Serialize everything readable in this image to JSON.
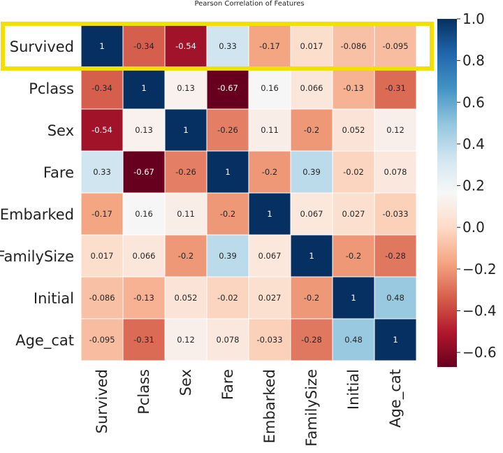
{
  "chart_data": {
    "type": "heatmap",
    "title": "Pearson Correlation of Features",
    "rows": [
      "Survived",
      "Pclass",
      "Sex",
      "Fare",
      "Embarked",
      "FamilySize",
      "Initial",
      "Age_cat"
    ],
    "columns": [
      "Survived",
      "Pclass",
      "Sex",
      "Fare",
      "Embarked",
      "FamilySize",
      "Initial",
      "Age_cat"
    ],
    "values": [
      [
        1,
        -0.34,
        -0.54,
        0.33,
        -0.17,
        0.017,
        -0.086,
        -0.095
      ],
      [
        -0.34,
        1,
        0.13,
        -0.67,
        0.16,
        0.066,
        -0.13,
        -0.31
      ],
      [
        -0.54,
        0.13,
        1,
        -0.26,
        0.11,
        -0.2,
        0.052,
        0.12
      ],
      [
        0.33,
        -0.67,
        -0.26,
        1,
        -0.2,
        0.39,
        -0.02,
        0.078
      ],
      [
        -0.17,
        0.16,
        0.11,
        -0.2,
        1,
        0.067,
        0.027,
        -0.033
      ],
      [
        0.017,
        0.066,
        -0.2,
        0.39,
        0.067,
        1,
        -0.2,
        -0.28
      ],
      [
        -0.086,
        -0.13,
        0.052,
        -0.02,
        0.027,
        -0.2,
        1,
        0.48
      ],
      [
        -0.095,
        -0.31,
        0.12,
        0.078,
        -0.033,
        -0.28,
        0.48,
        1
      ]
    ],
    "colormap": "RdBu",
    "value_range": [
      -0.67,
      1.0
    ],
    "colorbar_ticks": [
      1.0,
      0.8,
      0.6,
      0.4,
      0.2,
      0.0,
      -0.2,
      -0.4,
      -0.6
    ],
    "colorbar_tick_labels": [
      "1.0",
      "0.8",
      "0.6",
      "0.4",
      "0.2",
      "0.0",
      "−0.2",
      "−0.4",
      "−0.6"
    ],
    "annotations": true,
    "highlighted_row": "Survived",
    "highlight_color": "#f2e000"
  }
}
